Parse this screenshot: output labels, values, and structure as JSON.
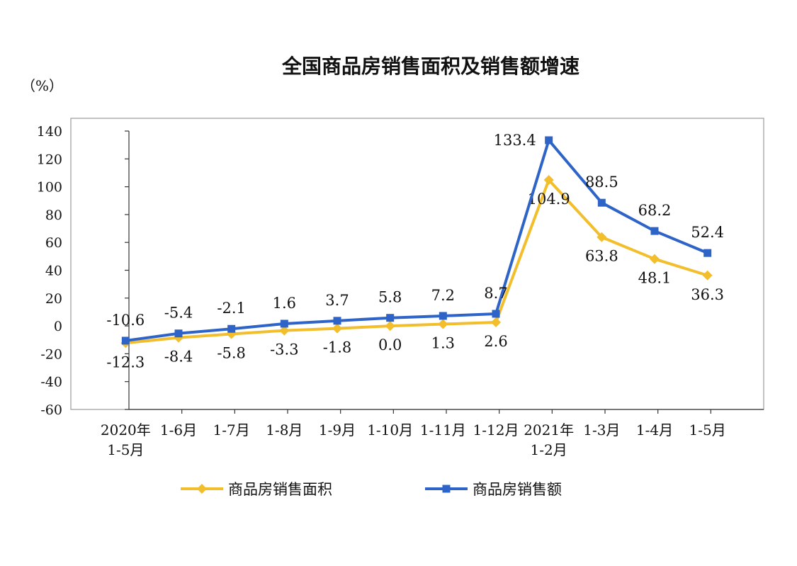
{
  "chart_data": {
    "type": "line",
    "title": "全国商品房销售面积及销售额增速",
    "ylabel": "（%）",
    "xlabel": "",
    "categories": [
      [
        "2020年",
        "1-5月"
      ],
      [
        "1-6月"
      ],
      [
        "1-7月"
      ],
      [
        "1-8月"
      ],
      [
        "1-9月"
      ],
      [
        "1-10月"
      ],
      [
        "1-11月"
      ],
      [
        "1-12月"
      ],
      [
        "2021年",
        "1-2月"
      ],
      [
        "1-3月"
      ],
      [
        "1-4月"
      ],
      [
        "1-5月"
      ]
    ],
    "ylim": [
      -60,
      140
    ],
    "yticks": [
      "140",
      "120",
      "100",
      "80",
      "60",
      "40",
      "20",
      "0",
      "-20",
      "-40",
      "-60"
    ],
    "grid": false,
    "legend_position": "bottom",
    "series": [
      {
        "name": "商品房销售面积",
        "color": "#F2BE2C",
        "marker": "diamond",
        "values": [
          -12.3,
          -8.4,
          -5.8,
          -3.3,
          -1.8,
          0.0,
          1.3,
          2.6,
          104.9,
          63.8,
          48.1,
          36.3
        ],
        "labels": [
          "-12.3",
          "-8.4",
          "-5.8",
          "-3.3",
          "-1.8",
          "0.0",
          "1.3",
          "2.6",
          "104.9",
          "63.8",
          "48.1",
          "36.3"
        ]
      },
      {
        "name": "商品房销售额",
        "color": "#2E64C8",
        "marker": "square",
        "values": [
          -10.6,
          -5.4,
          -2.1,
          1.6,
          3.7,
          5.8,
          7.2,
          8.7,
          133.4,
          88.5,
          68.2,
          52.4
        ],
        "labels": [
          "-10.6",
          "-5.4",
          "-2.1",
          "1.6",
          "3.7",
          "5.8",
          "7.2",
          "8.7",
          "133.4",
          "88.5",
          "68.2",
          "52.4"
        ]
      }
    ]
  }
}
